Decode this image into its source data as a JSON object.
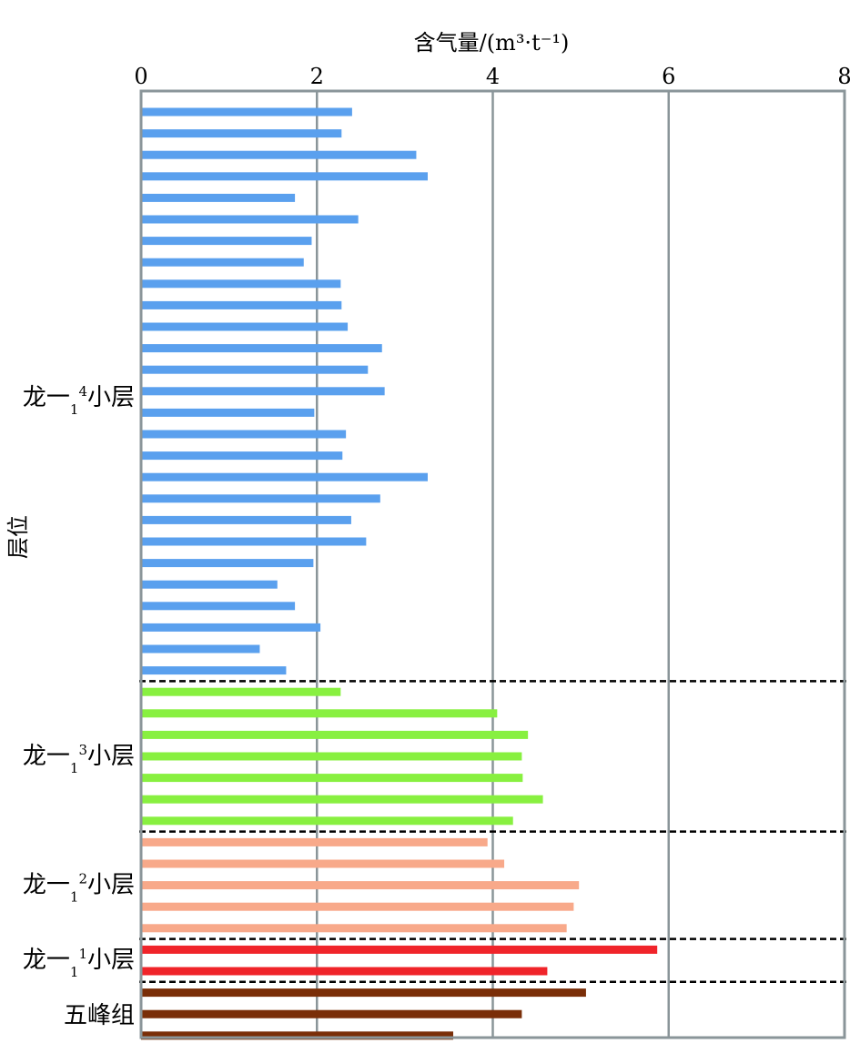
{
  "chart_data": {
    "type": "bar",
    "orientation": "horizontal",
    "title": "",
    "xlabel": "含气量/(m³·t⁻¹)",
    "ylabel": "层位",
    "xlim": [
      0,
      8
    ],
    "xticks": [
      "0",
      "2",
      "4",
      "6",
      "8"
    ],
    "x_axis_position": "top",
    "grid": "vertical",
    "legend": "none",
    "groups": [
      {
        "label": "龙一",
        "sub": "1",
        "sup": "4",
        "suffix": "小层",
        "color": "#5aa0ee",
        "values": [
          2.4,
          2.28,
          3.13,
          3.26,
          1.75,
          2.47,
          1.94,
          1.85,
          2.27,
          2.28,
          2.35,
          2.74,
          2.58,
          2.77,
          1.97,
          2.33,
          2.29,
          3.26,
          2.72,
          2.39,
          2.56,
          1.96,
          1.55,
          1.75,
          2.04,
          1.35,
          1.65
        ]
      },
      {
        "label": "龙一",
        "sub": "1",
        "sup": "3",
        "suffix": "小层",
        "color": "#88f040",
        "values": [
          2.27,
          4.05,
          4.4,
          4.33,
          4.34,
          4.57,
          4.23
        ]
      },
      {
        "label": "龙一",
        "sub": "1",
        "sup": "2",
        "suffix": "小层",
        "color": "#f8a98a",
        "values": [
          3.94,
          4.13,
          4.98,
          4.92,
          4.84
        ]
      },
      {
        "label": "龙一",
        "sub": "1",
        "sup": "1",
        "suffix": "小层",
        "color": "#f0242a",
        "values": [
          5.87,
          4.62
        ]
      },
      {
        "label": "五峰组",
        "sub": "",
        "sup": "",
        "suffix": "",
        "color": "#7a2e08",
        "values": [
          5.06,
          4.33,
          3.55
        ]
      }
    ]
  }
}
